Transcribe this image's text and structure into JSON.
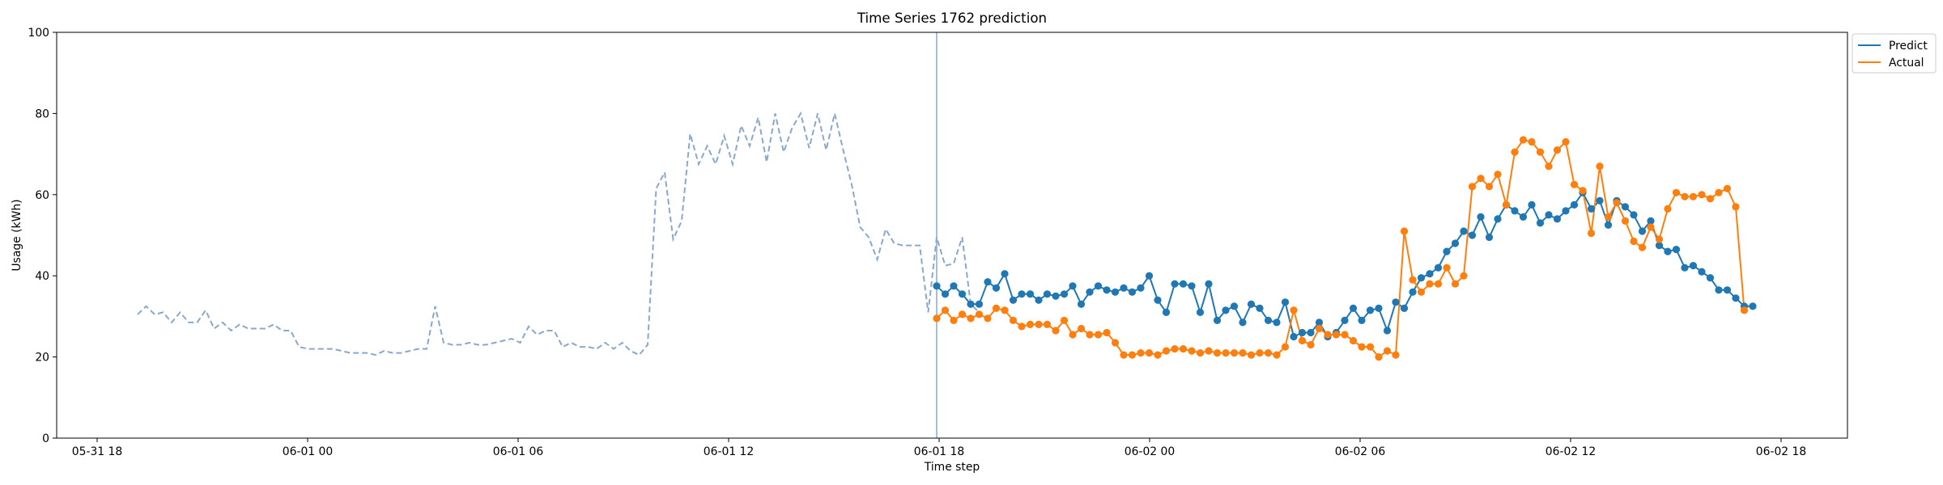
{
  "chart_data": {
    "type": "line",
    "title": "Time Series 1762 prediction",
    "xlabel": "Time step",
    "ylabel": "Usage (kWh)",
    "ylim": [
      0,
      100
    ],
    "yticks": [
      0,
      20,
      40,
      60,
      80,
      100
    ],
    "xticks": [
      "05-31 18",
      "06-01 00",
      "06-01 06",
      "06-01 12",
      "06-01 18",
      "06-02 00",
      "06-02 06",
      "06-02 12",
      "06-02 18"
    ],
    "x_start": "2024-05-31 19:00",
    "step_minutes": 15,
    "forecast_start": "2024-06-01 18:30",
    "grid": false,
    "legend_position": "outside upper right",
    "colors": {
      "history": "#8aa8cc",
      "predict": "#1f77b4",
      "actual": "#ff7f0e",
      "split": "#8aa8cc"
    },
    "history": {
      "name": "",
      "values": [
        30.5,
        32.5,
        30.5,
        31.0,
        28.5,
        31.0,
        28.5,
        28.5,
        31.5,
        27.0,
        28.5,
        26.5,
        28.0,
        27.0,
        27.0,
        27.0,
        28.0,
        26.5,
        26.5,
        22.5,
        22.0,
        22.0,
        22.0,
        22.0,
        21.5,
        21.0,
        21.0,
        21.0,
        20.5,
        21.5,
        21.0,
        21.0,
        21.5,
        22.0,
        22.0,
        32.5,
        23.5,
        23.0,
        23.0,
        23.5,
        23.0,
        23.0,
        23.5,
        24.0,
        24.5,
        23.5,
        27.5,
        25.5,
        26.5,
        26.5,
        22.5,
        23.5,
        22.5,
        22.5,
        22.0,
        23.5,
        22.0,
        23.5,
        21.5,
        20.5,
        23.0,
        61.5,
        65.5,
        49.0,
        53.5,
        75.0,
        67.5,
        72.0,
        67.5,
        74.5,
        67.5,
        77.0,
        72.0,
        79.0,
        68.0,
        80.0,
        70.5,
        76.5,
        80.0,
        71.5,
        80.0,
        71.0,
        80.0,
        71.0,
        62.5,
        52.0,
        49.5,
        44.0,
        51.5,
        48.0,
        47.5,
        47.5,
        47.5,
        31.0,
        49.5,
        42.5,
        43.0,
        49.5,
        33.0,
        31.0
      ]
    },
    "series": [
      {
        "name": "Predict",
        "values": [
          37.5,
          35.5,
          37.5,
          35.5,
          33.0,
          33.0,
          38.5,
          37.0,
          40.5,
          34.0,
          35.5,
          35.5,
          34.0,
          35.5,
          35.0,
          35.5,
          37.5,
          33.0,
          36.0,
          37.5,
          36.5,
          36.0,
          37.0,
          36.0,
          37.0,
          40.0,
          34.0,
          31.0,
          38.0,
          38.0,
          37.5,
          31.0,
          38.0,
          29.0,
          31.5,
          32.5,
          28.5,
          33.0,
          32.0,
          29.0,
          28.5,
          33.5,
          25.0,
          26.0,
          26.0,
          28.5,
          25.0,
          26.0,
          29.0,
          32.0,
          29.0,
          31.5,
          32.0,
          26.5,
          33.5,
          32.0,
          36.0,
          39.5,
          40.5,
          42.0,
          46.0,
          48.0,
          51.0,
          50.0,
          54.5,
          49.5,
          54.0,
          57.5,
          56.0,
          54.5,
          57.5,
          53.0,
          55.0,
          54.0,
          56.0,
          57.5,
          60.5,
          56.5,
          58.5,
          52.5,
          58.5,
          57.0,
          55.0,
          51.0,
          53.5,
          47.5,
          46.0,
          46.5,
          42.0,
          42.5,
          41.0,
          39.5,
          36.5,
          36.5,
          34.5,
          32.5,
          32.5
        ]
      },
      {
        "name": "Actual",
        "values": [
          29.5,
          31.5,
          29.0,
          30.5,
          29.5,
          30.5,
          29.5,
          32.0,
          31.5,
          29.0,
          27.5,
          28.0,
          28.0,
          28.0,
          26.5,
          29.0,
          25.5,
          27.0,
          25.5,
          25.5,
          26.0,
          23.5,
          20.5,
          20.5,
          21.0,
          21.0,
          20.5,
          21.5,
          22.0,
          22.0,
          21.5,
          21.0,
          21.5,
          21.0,
          21.0,
          21.0,
          21.0,
          20.5,
          21.0,
          21.0,
          20.5,
          22.5,
          31.5,
          24.0,
          23.0,
          27.0,
          25.5,
          25.5,
          25.5,
          24.0,
          22.5,
          22.5,
          20.0,
          21.5,
          20.5,
          51.0,
          39.0,
          36.0,
          38.0,
          38.0,
          42.0,
          38.0,
          40.0,
          62.0,
          64.0,
          62.0,
          65.0,
          57.5,
          70.5,
          73.5,
          73.0,
          70.5,
          67.0,
          71.0,
          73.0,
          62.5,
          61.0,
          50.5,
          67.0,
          54.5,
          58.0,
          53.5,
          48.5,
          47.0,
          52.0,
          49.0,
          56.5,
          60.5,
          59.5,
          59.5,
          60.0,
          59.0,
          60.5,
          61.5,
          57.0,
          31.5
        ]
      }
    ]
  }
}
